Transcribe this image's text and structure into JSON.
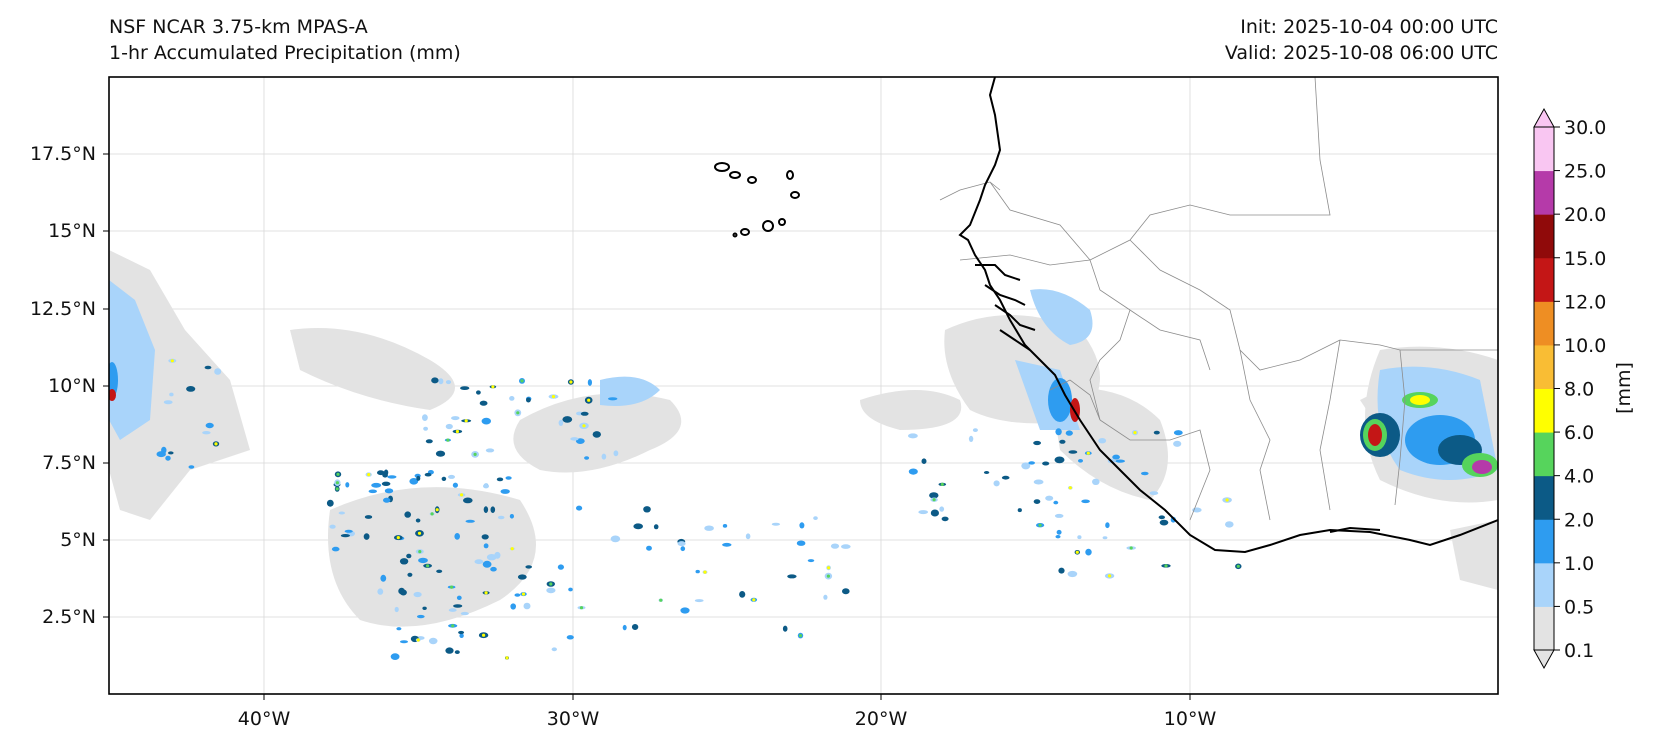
{
  "header": {
    "model": "NSF NCAR 3.75-km MPAS-A",
    "field": "1-hr Accumulated Precipitation (mm)",
    "init": "Init: 2025-10-04 00:00 UTC",
    "valid": "Valid: 2025-10-08 06:00 UTC"
  },
  "axes": {
    "lat_ticks": [
      "17.5°N",
      "15°N",
      "12.5°N",
      "10°N",
      "7.5°N",
      "5°N",
      "2.5°N"
    ],
    "lon_ticks": [
      "40°W",
      "30°W",
      "20°W",
      "10°W"
    ]
  },
  "colorbar": {
    "unit_label": "[mm]",
    "levels": [
      "0.1",
      "0.5",
      "1.0",
      "2.0",
      "4.0",
      "6.0",
      "8.0",
      "10.0",
      "12.0",
      "15.0",
      "20.0",
      "25.0",
      "30.0"
    ],
    "colors": [
      "#e3e3e3",
      "#a9d4fa",
      "#2e9cf0",
      "#0c5a86",
      "#56d45c",
      "#ffff00",
      "#f9bd34",
      "#ee8e23",
      "#c41616",
      "#900a0a",
      "#b53aa9",
      "#f9c6f2"
    ]
  },
  "map": {
    "ocean_color": "#ffffff",
    "coastline_color": "#000000",
    "border_color": "#8c8c8c",
    "grid_color": "#d8d8d8"
  }
}
